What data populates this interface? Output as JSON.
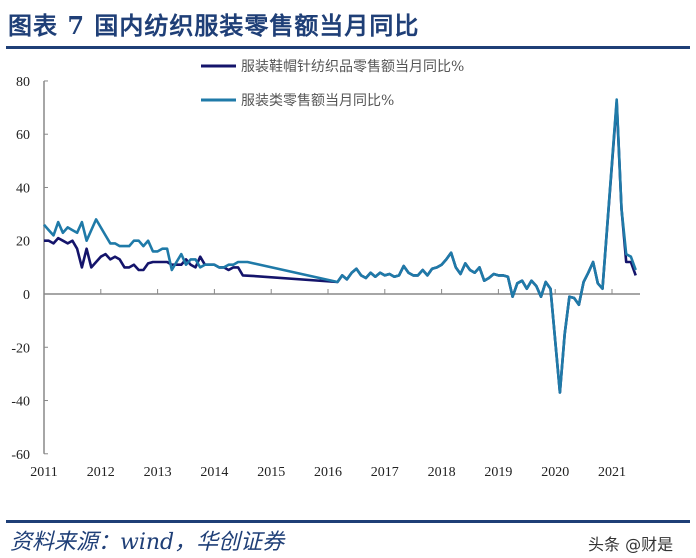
{
  "title": "图表 7  国内纺织服装零售额当月同比",
  "source": "资料来源：wind，华创证券",
  "watermark": "头条 @财是",
  "chart_data": {
    "type": "line",
    "title": "图表 7  国内纺织服装零售额当月同比",
    "xlabel": "",
    "ylabel": "",
    "ylim": [
      -60,
      80
    ],
    "yticks": [
      "80",
      "60",
      "40",
      "20",
      "0",
      "-20",
      "-40",
      "-60"
    ],
    "xticks": [
      "2011",
      "2012",
      "2013",
      "2014",
      "2015",
      "2016",
      "2017",
      "2018",
      "2019",
      "2020",
      "2021"
    ],
    "grid": false,
    "legend": "top-center",
    "series": [
      {
        "name": "服装鞋帽针纺织品零售额当月同比%",
        "color": "#14146b",
        "points": [
          [
            "2011-01",
            20
          ],
          [
            "2011-02",
            20
          ],
          [
            "2011-03",
            19
          ],
          [
            "2011-04",
            21
          ],
          [
            "2011-05",
            20
          ],
          [
            "2011-06",
            19
          ],
          [
            "2011-07",
            20
          ],
          [
            "2011-08",
            17
          ],
          [
            "2011-09",
            10
          ],
          [
            "2011-10",
            17
          ],
          [
            "2011-11",
            10
          ],
          [
            "2011-12",
            12
          ],
          [
            "2012-01",
            14
          ],
          [
            "2012-02",
            15
          ],
          [
            "2012-03",
            13
          ],
          [
            "2012-04",
            14
          ],
          [
            "2012-05",
            13
          ],
          [
            "2012-06",
            10
          ],
          [
            "2012-07",
            10
          ],
          [
            "2012-08",
            11
          ],
          [
            "2012-09",
            9
          ],
          [
            "2012-10",
            9
          ],
          [
            "2012-11",
            11.5
          ],
          [
            "2012-12",
            12
          ],
          [
            "2013-01",
            12
          ],
          [
            "2013-02",
            12
          ],
          [
            "2013-03",
            12
          ],
          [
            "2013-04",
            11
          ],
          [
            "2013-05",
            11
          ],
          [
            "2013-06",
            11
          ],
          [
            "2013-07",
            13
          ],
          [
            "2013-08",
            11
          ],
          [
            "2013-09",
            10
          ],
          [
            "2013-10",
            14
          ],
          [
            "2013-11",
            11
          ],
          [
            "2013-12",
            11
          ],
          [
            "2014-01",
            11
          ],
          [
            "2014-02",
            10
          ],
          [
            "2014-03",
            10
          ],
          [
            "2014-04",
            9
          ],
          [
            "2014-05",
            10
          ],
          [
            "2014-06",
            10
          ],
          [
            "2014-07",
            7
          ],
          [
            "2014-09",
            6.8
          ],
          [
            "2016-03",
            4.5
          ],
          [
            "2016-04",
            7
          ],
          [
            "2016-05",
            5.5
          ],
          [
            "2016-06",
            8
          ],
          [
            "2016-07",
            9.5
          ],
          [
            "2016-08",
            7
          ],
          [
            "2016-09",
            6
          ],
          [
            "2016-10",
            8
          ],
          [
            "2016-11",
            6.5
          ],
          [
            "2016-12",
            8
          ],
          [
            "2017-01",
            7
          ],
          [
            "2017-02",
            7.5
          ],
          [
            "2017-03",
            6.5
          ],
          [
            "2017-04",
            7
          ],
          [
            "2017-05",
            10.5
          ],
          [
            "2017-06",
            8
          ],
          [
            "2017-07",
            7
          ],
          [
            "2017-08",
            7
          ],
          [
            "2017-09",
            9
          ],
          [
            "2017-10",
            7
          ],
          [
            "2017-11",
            9.5
          ],
          [
            "2017-12",
            10
          ],
          [
            "2018-01",
            11
          ],
          [
            "2018-02",
            13
          ],
          [
            "2018-03",
            15.5
          ],
          [
            "2018-04",
            10
          ],
          [
            "2018-05",
            7.5
          ],
          [
            "2018-06",
            11.5
          ],
          [
            "2018-07",
            9
          ],
          [
            "2018-08",
            8
          ],
          [
            "2018-09",
            10
          ],
          [
            "2018-10",
            5
          ],
          [
            "2018-11",
            6
          ],
          [
            "2018-12",
            7.5
          ],
          [
            "2019-01",
            7
          ],
          [
            "2019-02",
            7
          ],
          [
            "2019-03",
            6.5
          ],
          [
            "2019-04",
            -1
          ],
          [
            "2019-05",
            4
          ],
          [
            "2019-06",
            5
          ],
          [
            "2019-07",
            2
          ],
          [
            "2019-08",
            5
          ],
          [
            "2019-09",
            3
          ],
          [
            "2019-10",
            -1
          ],
          [
            "2019-11",
            4.5
          ],
          [
            "2019-12",
            2
          ],
          [
            "2020-02",
            -37
          ],
          [
            "2020-03",
            -15
          ],
          [
            "2020-04",
            -1
          ],
          [
            "2020-05",
            -1.5
          ],
          [
            "2020-06",
            -4
          ],
          [
            "2020-07",
            4.5
          ],
          [
            "2020-08",
            8
          ],
          [
            "2020-09",
            12
          ],
          [
            "2020-10",
            4
          ],
          [
            "2020-11",
            2
          ],
          [
            "2021-02",
            72
          ],
          [
            "2021-03",
            32
          ],
          [
            "2021-04",
            12
          ],
          [
            "2021-05",
            12
          ],
          [
            "2021-06",
            7
          ]
        ]
      },
      {
        "name": "服装类零售额当月同比%",
        "color": "#1f7aa8",
        "points": [
          [
            "2011-01",
            26
          ],
          [
            "2011-02",
            24
          ],
          [
            "2011-03",
            22
          ],
          [
            "2011-04",
            27
          ],
          [
            "2011-05",
            23
          ],
          [
            "2011-06",
            25
          ],
          [
            "2011-07",
            24
          ],
          [
            "2011-08",
            23
          ],
          [
            "2011-09",
            27
          ],
          [
            "2011-10",
            20
          ],
          [
            "2011-11",
            24
          ],
          [
            "2011-12",
            28
          ],
          [
            "2012-01",
            25
          ],
          [
            "2012-02",
            22
          ],
          [
            "2012-03",
            19
          ],
          [
            "2012-04",
            19
          ],
          [
            "2012-05",
            18
          ],
          [
            "2012-06",
            18
          ],
          [
            "2012-07",
            18
          ],
          [
            "2012-08",
            20
          ],
          [
            "2012-09",
            20
          ],
          [
            "2012-10",
            18
          ],
          [
            "2012-11",
            20
          ],
          [
            "2012-12",
            16
          ],
          [
            "2013-01",
            16
          ],
          [
            "2013-02",
            17
          ],
          [
            "2013-03",
            17
          ],
          [
            "2013-04",
            9
          ],
          [
            "2013-05",
            12
          ],
          [
            "2013-06",
            15
          ],
          [
            "2013-07",
            11
          ],
          [
            "2013-08",
            13
          ],
          [
            "2013-09",
            13
          ],
          [
            "2013-10",
            10
          ],
          [
            "2013-11",
            11
          ],
          [
            "2013-12",
            11
          ],
          [
            "2014-01",
            11
          ],
          [
            "2014-02",
            10
          ],
          [
            "2014-03",
            10
          ],
          [
            "2014-04",
            11
          ],
          [
            "2014-05",
            11
          ],
          [
            "2014-06",
            12
          ],
          [
            "2014-07",
            12
          ],
          [
            "2014-08",
            12
          ],
          [
            "2016-03",
            4.5
          ],
          [
            "2016-04",
            7
          ],
          [
            "2016-05",
            5.5
          ],
          [
            "2016-06",
            8
          ],
          [
            "2016-07",
            9.5
          ],
          [
            "2016-08",
            7
          ],
          [
            "2016-09",
            6
          ],
          [
            "2016-10",
            8
          ],
          [
            "2016-11",
            6.5
          ],
          [
            "2016-12",
            8
          ],
          [
            "2017-01",
            7
          ],
          [
            "2017-02",
            7.5
          ],
          [
            "2017-03",
            6.5
          ],
          [
            "2017-04",
            7
          ],
          [
            "2017-05",
            10.5
          ],
          [
            "2017-06",
            8
          ],
          [
            "2017-07",
            7
          ],
          [
            "2017-08",
            7
          ],
          [
            "2017-09",
            9
          ],
          [
            "2017-10",
            7
          ],
          [
            "2017-11",
            9.5
          ],
          [
            "2017-12",
            10
          ],
          [
            "2018-01",
            11
          ],
          [
            "2018-02",
            13
          ],
          [
            "2018-03",
            15.5
          ],
          [
            "2018-04",
            10
          ],
          [
            "2018-05",
            7.5
          ],
          [
            "2018-06",
            11.5
          ],
          [
            "2018-07",
            9
          ],
          [
            "2018-08",
            8
          ],
          [
            "2018-09",
            10
          ],
          [
            "2018-10",
            5
          ],
          [
            "2018-11",
            6
          ],
          [
            "2018-12",
            7.5
          ],
          [
            "2019-01",
            7
          ],
          [
            "2019-02",
            7
          ],
          [
            "2019-03",
            6.5
          ],
          [
            "2019-04",
            -1
          ],
          [
            "2019-05",
            4
          ],
          [
            "2019-06",
            5
          ],
          [
            "2019-07",
            2
          ],
          [
            "2019-08",
            5
          ],
          [
            "2019-09",
            3
          ],
          [
            "2019-10",
            -1
          ],
          [
            "2019-11",
            4.5
          ],
          [
            "2019-12",
            2
          ],
          [
            "2020-02",
            -37
          ],
          [
            "2020-03",
            -15
          ],
          [
            "2020-04",
            -1
          ],
          [
            "2020-05",
            -1.5
          ],
          [
            "2020-06",
            -4
          ],
          [
            "2020-07",
            4.5
          ],
          [
            "2020-08",
            8
          ],
          [
            "2020-09",
            12
          ],
          [
            "2020-10",
            4
          ],
          [
            "2020-11",
            2
          ],
          [
            "2021-02",
            73
          ],
          [
            "2021-03",
            32
          ],
          [
            "2021-04",
            15
          ],
          [
            "2021-05",
            14
          ],
          [
            "2021-06",
            9
          ]
        ]
      }
    ]
  }
}
